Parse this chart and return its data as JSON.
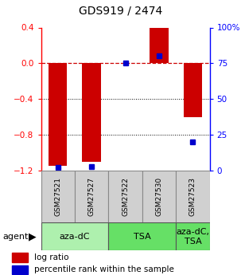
{
  "title": "GDS919 / 2474",
  "samples": [
    "GSM27521",
    "GSM27527",
    "GSM27522",
    "GSM27530",
    "GSM27523"
  ],
  "log_ratio": [
    -1.15,
    -1.1,
    0.0,
    0.4,
    -0.6
  ],
  "percentile_rank": [
    2.0,
    2.5,
    75.0,
    80.0,
    20.0
  ],
  "ylim_left": [
    -1.2,
    0.4
  ],
  "ylim_right": [
    0,
    100
  ],
  "yticks_left": [
    -1.2,
    -0.8,
    -0.4,
    0.0,
    0.4
  ],
  "yticks_right": [
    0,
    25,
    50,
    75,
    100
  ],
  "ytick_labels_right": [
    "0",
    "25",
    "50",
    "75",
    "100%"
  ],
  "agents": [
    {
      "label": "aza-dC",
      "span": [
        0,
        2
      ],
      "color": "#aef0ae"
    },
    {
      "label": "TSA",
      "span": [
        2,
        4
      ],
      "color": "#66e066"
    },
    {
      "label": "aza-dC,\nTSA",
      "span": [
        4,
        5
      ],
      "color": "#66e066"
    }
  ],
  "bar_color": "#cc0000",
  "dot_color": "#0000cc",
  "bar_width": 0.55,
  "sample_box_color": "#d0d0d0",
  "zero_line_color": "#cc0000",
  "grid_color": "#000000",
  "background_color": "#ffffff",
  "agent_label_fontsize": 8,
  "sample_label_fontsize": 6.5,
  "tick_fontsize": 7.5,
  "title_fontsize": 10
}
